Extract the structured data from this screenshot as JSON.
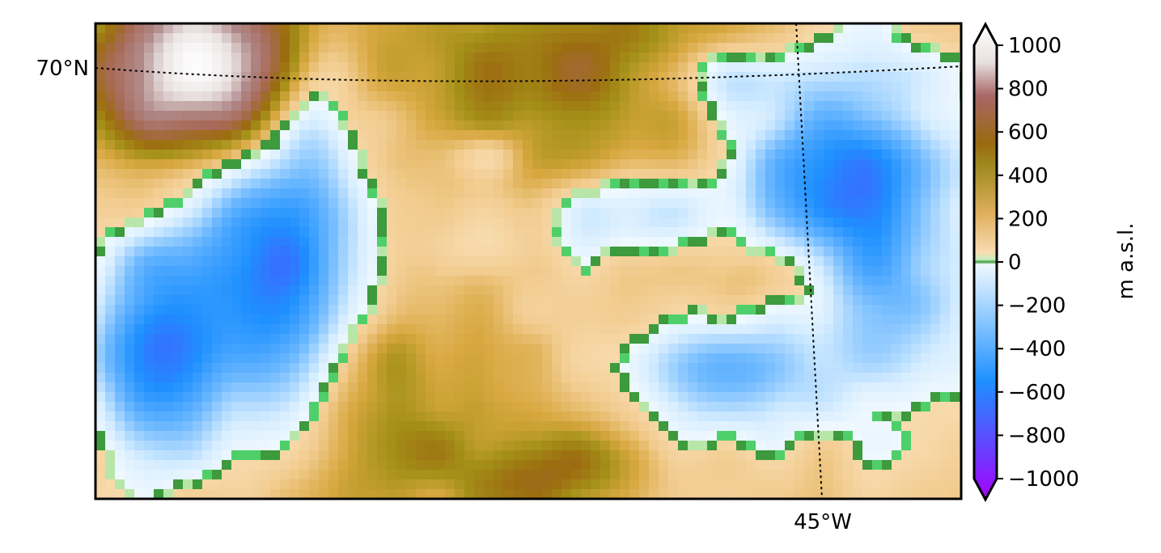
{
  "map": {
    "graticule": {
      "lat_label": "70°N",
      "lon_label": "45°W"
    },
    "colorbar": {
      "label": "m a.s.l.",
      "range": [
        -1000,
        1000
      ],
      "extend": "both",
      "ticks": [
        {
          "value": 1000,
          "label": "1000"
        },
        {
          "value": 800,
          "label": "800"
        },
        {
          "value": 600,
          "label": "600"
        },
        {
          "value": 400,
          "label": "400"
        },
        {
          "value": 200,
          "label": "200"
        },
        {
          "value": 0,
          "label": "0"
        },
        {
          "value": -200,
          "label": "−200"
        },
        {
          "value": -400,
          "label": "−400"
        },
        {
          "value": -600,
          "label": "−600"
        },
        {
          "value": -800,
          "label": "−800"
        },
        {
          "value": -1000,
          "label": "−1000"
        }
      ]
    },
    "colors": {
      "deep_water": "#9900ff",
      "mid_water": "#1e90ff",
      "shallow_water": "#dff2ff",
      "coast_green": "#3a9a3a",
      "low_land": "#f5d6a6",
      "mid_land": "#a07c10",
      "high_land": "#a05848",
      "peak": "#ffffff"
    }
  }
}
